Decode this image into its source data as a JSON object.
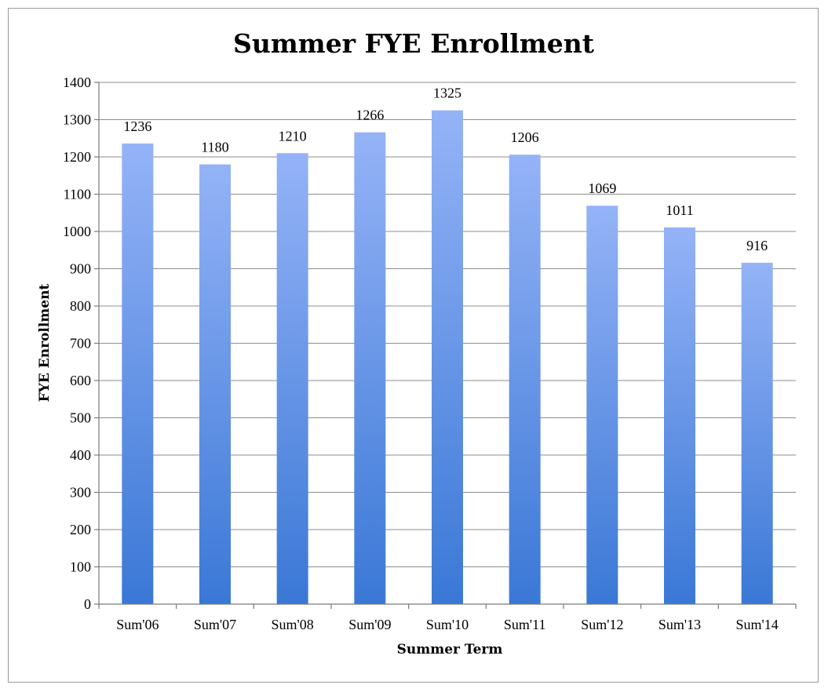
{
  "chart_data": {
    "type": "bar",
    "title": "Summer FYE Enrollment",
    "xlabel": "Summer Term",
    "ylabel": "FYE Enrollment",
    "categories": [
      "Sum'06",
      "Sum'07",
      "Sum'08",
      "Sum'09",
      "Sum'10",
      "Sum'11",
      "Sum'12",
      "Sum'13",
      "Sum'14"
    ],
    "values": [
      1236,
      1180,
      1210,
      1266,
      1325,
      1206,
      1069,
      1011,
      916
    ],
    "data_labels": [
      "1236",
      "1180",
      "1210",
      "1266",
      "1325",
      "1206",
      "1069",
      "1011",
      "916"
    ],
    "ylim": [
      0,
      1400
    ],
    "yticks": [
      "0",
      "100",
      "200",
      "300",
      "400",
      "500",
      "600",
      "700",
      "800",
      "900",
      "1000",
      "1100",
      "1200",
      "1300",
      "1400"
    ],
    "grid": true,
    "legend": "none",
    "colors": {
      "bar_top": "#95b3f7",
      "bar_bottom": "#3a78d6"
    }
  }
}
